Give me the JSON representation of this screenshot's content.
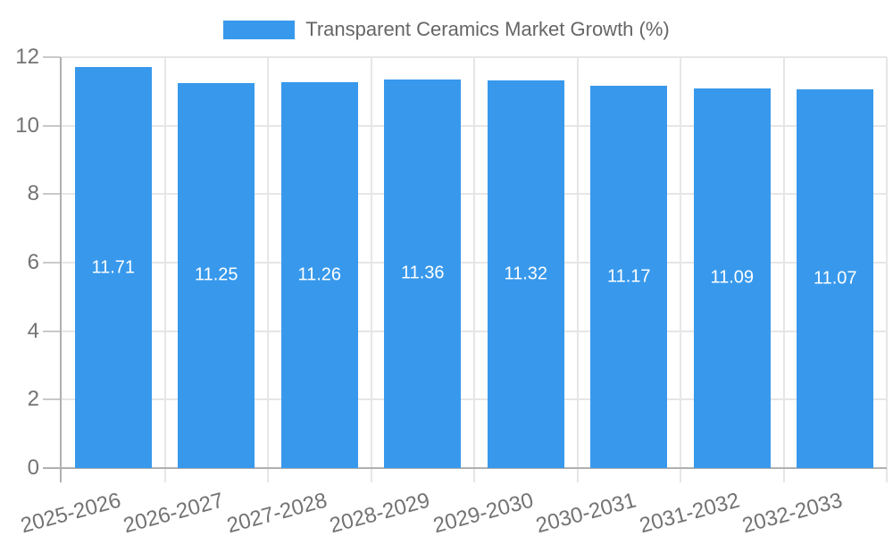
{
  "chart_data": {
    "type": "bar",
    "title": "Transparent Ceramics Market Growth (%)",
    "legend": [
      "Transparent Ceramics Market Growth (%)"
    ],
    "legend_position": "top",
    "categories": [
      "2025-2026",
      "2026-2027",
      "2027-2028",
      "2028-2029",
      "2029-2030",
      "2030-2031",
      "2031-2032",
      "2032-2033"
    ],
    "values": [
      11.71,
      11.25,
      11.26,
      11.36,
      11.32,
      11.17,
      11.09,
      11.07
    ],
    "xlabel": "",
    "ylabel": "",
    "ylim": [
      0,
      12
    ],
    "yticks": [
      0,
      2,
      4,
      6,
      8,
      10,
      12
    ],
    "grid": true,
    "colors": {
      "bar": "#3899ec",
      "grid": "#e6e6e6",
      "tick": "#c9c9c9",
      "axis": "#b0b0b0",
      "axis_label": "#737373",
      "title": "#666666",
      "value_label": "#ffffff",
      "background": "#ffffff"
    }
  }
}
